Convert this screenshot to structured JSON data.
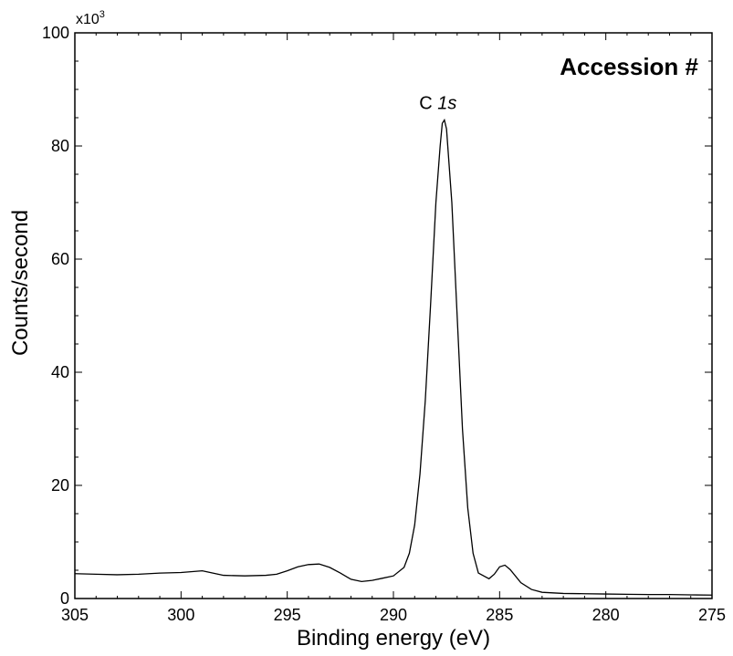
{
  "chart_data": {
    "type": "line",
    "title": "Accession #",
    "xlabel": "Binding energy (eV)",
    "ylabel": "Counts/second",
    "y_multiplier": "x10",
    "y_multiplier_exp": "3",
    "xlim": [
      305,
      275
    ],
    "ylim": [
      0,
      100
    ],
    "x_reversed": true,
    "grid": false,
    "x_ticks": [
      305,
      300,
      295,
      290,
      285,
      280,
      275
    ],
    "y_ticks": [
      0,
      20,
      40,
      60,
      80,
      100
    ],
    "annotations": [
      {
        "text_main": "C ",
        "text_italic": "1s",
        "x": 287.9,
        "y": 86.5
      }
    ],
    "series": [
      {
        "x": [
          305,
          304,
          303,
          302,
          301,
          300,
          299,
          298.5,
          298,
          297,
          296,
          295.5,
          295,
          294.5,
          294,
          293.5,
          293,
          292.5,
          292,
          291.5,
          291,
          290.5,
          290,
          289.5,
          289.25,
          289,
          288.75,
          288.5,
          288.25,
          288,
          287.8,
          287.7,
          287.6,
          287.5,
          287.25,
          287,
          286.75,
          286.5,
          286.25,
          286,
          285.5,
          285.25,
          285,
          284.75,
          284.5,
          284,
          283.5,
          283,
          282,
          281,
          280,
          279,
          278,
          277,
          276,
          275
        ],
        "y": [
          4.4,
          4.3,
          4.2,
          4.3,
          4.5,
          4.6,
          4.9,
          4.5,
          4.1,
          4.0,
          4.1,
          4.3,
          4.9,
          5.6,
          6.0,
          6.1,
          5.5,
          4.5,
          3.4,
          3.0,
          3.2,
          3.6,
          4.0,
          5.5,
          8.0,
          13.0,
          22.0,
          35.0,
          52.0,
          70.0,
          80.0,
          84.0,
          84.6,
          83.0,
          70.0,
          50.0,
          30.0,
          16.0,
          8.0,
          4.5,
          3.5,
          4.3,
          5.6,
          5.9,
          5.1,
          2.8,
          1.6,
          1.1,
          0.9,
          0.85,
          0.8,
          0.75,
          0.7,
          0.7,
          0.65,
          0.6
        ]
      }
    ]
  }
}
